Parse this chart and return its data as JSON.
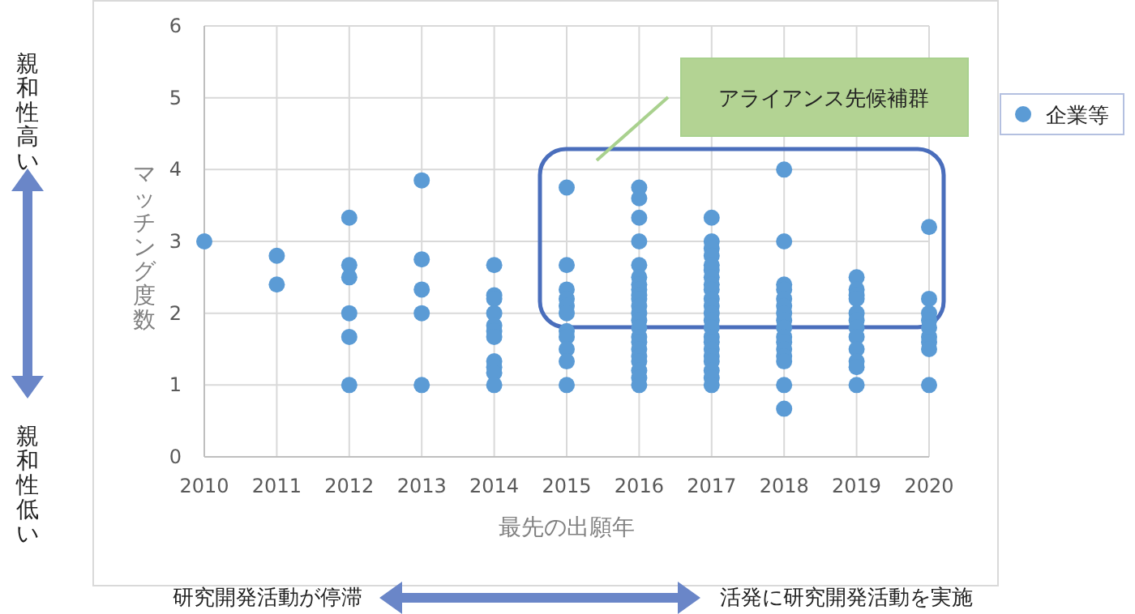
{
  "chart_data": {
    "type": "scatter",
    "xlabel": "最先の出願年",
    "ylabel": "マッチング度数",
    "annotations": [
      "アライアンス先候補群",
      "親和性高い",
      "親和性低い",
      "研究開発活動が停滞",
      "活発に研究開発活動を実施"
    ],
    "xlim": [
      2010,
      2020
    ],
    "xticks": [
      2010,
      2011,
      2012,
      2013,
      2014,
      2015,
      2016,
      2017,
      2018,
      2019,
      2020
    ],
    "ylim": [
      0,
      6
    ],
    "yticks": [
      0,
      1,
      2,
      3,
      4,
      5,
      6
    ],
    "grid": true,
    "legend": "top right",
    "marker": "circle",
    "series": [
      {
        "name": "企業等",
        "color": "#5b9bd5",
        "x": [
          2010,
          2011,
          2011,
          2012,
          2012,
          2012,
          2012,
          2012,
          2012,
          2013,
          2013,
          2013,
          2013,
          2013,
          2014,
          2014,
          2014,
          2014,
          2014,
          2014,
          2014,
          2014,
          2014,
          2014,
          2014,
          2015,
          2015,
          2015,
          2015,
          2015,
          2015,
          2015,
          2015,
          2015,
          2015,
          2015,
          2016,
          2016,
          2016,
          2016,
          2016,
          2016,
          2016,
          2016,
          2016,
          2016,
          2016,
          2016,
          2016,
          2016,
          2016,
          2016,
          2016,
          2016,
          2016,
          2016,
          2016,
          2016,
          2017,
          2017,
          2017,
          2017,
          2017,
          2017,
          2017,
          2017,
          2017,
          2017,
          2017,
          2017,
          2017,
          2017,
          2017,
          2017,
          2017,
          2017,
          2017,
          2017,
          2017,
          2017,
          2018,
          2018,
          2018,
          2018,
          2018,
          2018,
          2018,
          2018,
          2018,
          2018,
          2018,
          2018,
          2018,
          2018,
          2018,
          2018,
          2019,
          2019,
          2019,
          2019,
          2019,
          2019,
          2019,
          2019,
          2019,
          2019,
          2019,
          2019,
          2020,
          2020,
          2020,
          2020,
          2020,
          2020,
          2020,
          2020,
          2020
        ],
        "values": [
          3,
          2.8,
          2.4,
          3.33,
          2.67,
          2.5,
          2,
          1.67,
          1,
          3.85,
          2.75,
          2.33,
          2,
          1,
          2.67,
          2.25,
          2.2,
          2,
          1.83,
          1.75,
          1.67,
          1.33,
          1.25,
          1.17,
          1,
          3.75,
          2.67,
          2.33,
          2.2,
          2.1,
          2,
          1.75,
          1.67,
          1.5,
          1.33,
          1,
          3.75,
          3.6,
          3.33,
          3,
          2.67,
          2.5,
          2.4,
          2.33,
          2.25,
          2.2,
          2.1,
          2,
          1.9,
          1.8,
          1.67,
          1.6,
          1.5,
          1.4,
          1.33,
          1.2,
          1.1,
          1,
          3.33,
          3,
          2.9,
          2.8,
          2.67,
          2.6,
          2.5,
          2.4,
          2.33,
          2.2,
          2.1,
          2,
          1.9,
          1.8,
          1.67,
          1.6,
          1.5,
          1.4,
          1.33,
          1.2,
          1.1,
          1,
          4,
          3,
          2.4,
          2.33,
          2.2,
          2.1,
          2,
          1.9,
          1.8,
          1.67,
          1.6,
          1.5,
          1.4,
          1.33,
          1,
          0.67,
          2.5,
          2.33,
          2.25,
          2.2,
          2,
          1.9,
          1.8,
          1.67,
          1.5,
          1.33,
          1.25,
          1,
          3.2,
          2.2,
          2,
          1.9,
          1.8,
          1.67,
          1.6,
          1.5,
          1
        ]
      }
    ]
  }
}
